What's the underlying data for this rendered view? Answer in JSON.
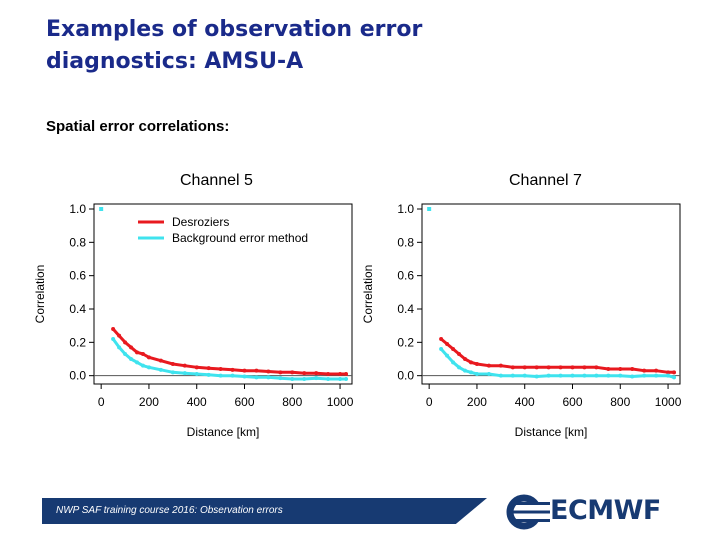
{
  "slide": {
    "title_line1": "Examples of observation error",
    "title_line2": "diagnostics: AMSU-A",
    "subtitle": "Spatial error correlations:",
    "footer": "NWP SAF training course 2016: Observation errors",
    "logo": "ECMWF"
  },
  "colors": {
    "title": "#1a2a8a",
    "desroziers": "#e8191f",
    "background_method": "#3fe3ee",
    "footer_bg": "#173a72"
  },
  "chart_data": [
    {
      "type": "line",
      "heading": "Channel 5",
      "xlabel": "Distance [km]",
      "ylabel": "Correlation",
      "xlim": [
        -30,
        1050
      ],
      "ylim": [
        -0.05,
        1.03
      ],
      "xticks": [
        0,
        200,
        400,
        600,
        800,
        1000
      ],
      "yticks": [
        0.0,
        0.2,
        0.4,
        0.6,
        0.8,
        1.0
      ],
      "ytick_labels": [
        "0.0",
        "0.2",
        "0.4",
        "0.6",
        "0.8",
        "1.0"
      ],
      "legend": "top-right",
      "zero_line": true,
      "point_at_zero": {
        "x": 0,
        "y": 1.0
      },
      "series": [
        {
          "name": "Desroziers",
          "color": "#e8191f",
          "x": [
            50,
            75,
            100,
            125,
            150,
            175,
            200,
            250,
            300,
            350,
            400,
            450,
            500,
            550,
            600,
            650,
            700,
            750,
            800,
            850,
            900,
            950,
            1000,
            1025
          ],
          "y": [
            0.28,
            0.24,
            0.2,
            0.17,
            0.14,
            0.13,
            0.11,
            0.09,
            0.07,
            0.06,
            0.05,
            0.045,
            0.04,
            0.035,
            0.03,
            0.03,
            0.025,
            0.02,
            0.02,
            0.015,
            0.015,
            0.01,
            0.01,
            0.01
          ]
        },
        {
          "name": "Background error method",
          "color": "#3fe3ee",
          "x": [
            50,
            75,
            100,
            125,
            150,
            175,
            200,
            250,
            300,
            350,
            400,
            450,
            500,
            550,
            600,
            650,
            700,
            750,
            800,
            850,
            900,
            950,
            1000,
            1025
          ],
          "y": [
            0.22,
            0.17,
            0.13,
            0.1,
            0.08,
            0.06,
            0.05,
            0.035,
            0.02,
            0.015,
            0.01,
            0.005,
            0.0,
            0.0,
            -0.005,
            -0.01,
            -0.01,
            -0.015,
            -0.02,
            -0.02,
            -0.015,
            -0.02,
            -0.02,
            -0.02
          ]
        }
      ]
    },
    {
      "type": "line",
      "heading": "Channel 7",
      "xlabel": "Distance [km]",
      "ylabel": "Correlation",
      "xlim": [
        -30,
        1050
      ],
      "ylim": [
        -0.05,
        1.03
      ],
      "xticks": [
        0,
        200,
        400,
        600,
        800,
        1000
      ],
      "yticks": [
        0.0,
        0.2,
        0.4,
        0.6,
        0.8,
        1.0
      ],
      "ytick_labels": [
        "0.0",
        "0.2",
        "0.4",
        "0.6",
        "0.8",
        "1.0"
      ],
      "zero_line": true,
      "point_at_zero": {
        "x": 0,
        "y": 1.0
      },
      "series": [
        {
          "name": "Desroziers",
          "color": "#e8191f",
          "x": [
            50,
            75,
            100,
            125,
            150,
            175,
            200,
            250,
            300,
            350,
            400,
            450,
            500,
            550,
            600,
            650,
            700,
            750,
            800,
            850,
            900,
            950,
            1000,
            1025
          ],
          "y": [
            0.22,
            0.19,
            0.16,
            0.13,
            0.1,
            0.08,
            0.07,
            0.06,
            0.06,
            0.05,
            0.05,
            0.05,
            0.05,
            0.05,
            0.05,
            0.05,
            0.05,
            0.04,
            0.04,
            0.04,
            0.03,
            0.03,
            0.02,
            0.02
          ]
        },
        {
          "name": "Background error method",
          "color": "#3fe3ee",
          "x": [
            50,
            75,
            100,
            125,
            150,
            175,
            200,
            250,
            300,
            350,
            400,
            450,
            500,
            550,
            600,
            650,
            700,
            750,
            800,
            850,
            900,
            950,
            1000,
            1025
          ],
          "y": [
            0.16,
            0.12,
            0.08,
            0.05,
            0.03,
            0.02,
            0.01,
            0.01,
            0.0,
            0.0,
            0.0,
            -0.005,
            0.0,
            0.0,
            0.0,
            0.0,
            0.0,
            0.0,
            0.0,
            -0.005,
            0.0,
            0.0,
            0.0,
            -0.01
          ]
        }
      ]
    }
  ]
}
